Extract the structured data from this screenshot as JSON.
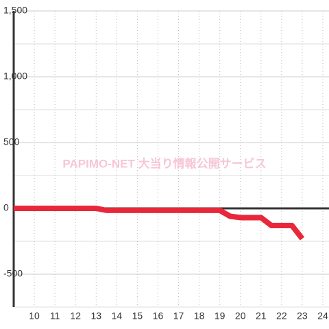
{
  "chart_data": {
    "type": "line",
    "watermark": "PAPIMO-NET 大当り情報公開サービス",
    "x": [
      9,
      13,
      13.5,
      19,
      19.5,
      20,
      21,
      21.5,
      22.5,
      23
    ],
    "series": [
      {
        "color": "#e8283a",
        "values": [
          0,
          0,
          -15,
          -15,
          -60,
          -70,
          -70,
          -130,
          -130,
          -230
        ]
      }
    ],
    "xlim": [
      9,
      24.3
    ],
    "xticks": [
      10,
      11,
      12,
      13,
      14,
      15,
      16,
      17,
      18,
      19,
      20,
      21,
      22,
      23,
      24
    ],
    "ylim": [
      -750,
      1500
    ],
    "yticks": [
      {
        "value": -500,
        "label": "-500"
      },
      0,
      500,
      {
        "value": 1000,
        "label": "1,000"
      },
      {
        "value": 1500,
        "label": "1,500"
      }
    ],
    "grid": true
  }
}
